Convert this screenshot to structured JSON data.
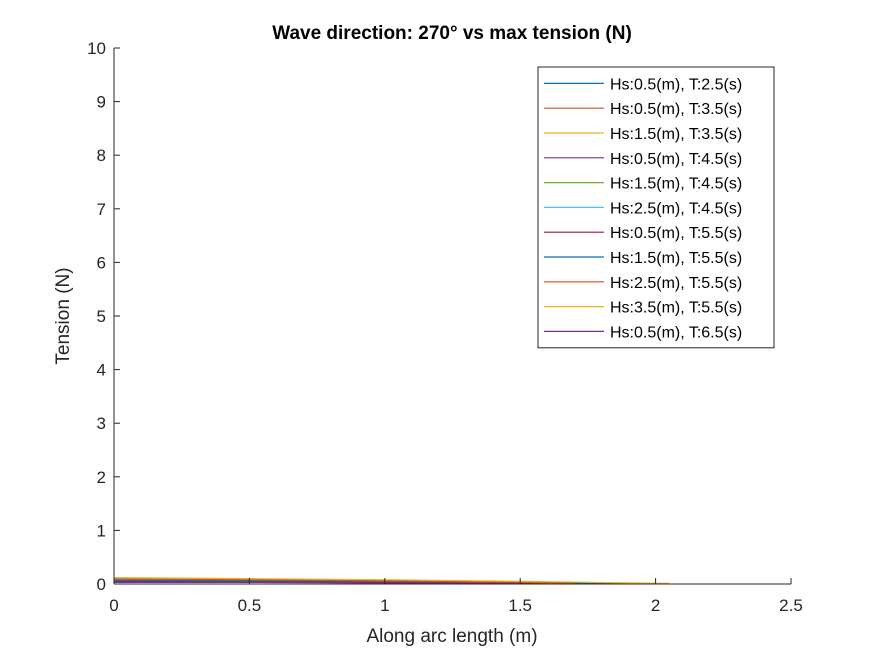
{
  "chart_data": {
    "type": "line",
    "title": "Wave direction: 270° vs max tension (N)",
    "xlabel": "Along arc length (m)",
    "ylabel": "Tension (N)",
    "xlim": [
      0,
      2.5
    ],
    "ylim": [
      0,
      10
    ],
    "xticks": [
      0,
      0.5,
      1,
      1.5,
      2,
      2.5
    ],
    "xtick_labels": [
      "0",
      "0.5",
      "1",
      "1.5",
      "2",
      "2.5"
    ],
    "yticks": [
      0,
      1,
      2,
      3,
      4,
      5,
      6,
      7,
      8,
      9,
      10
    ],
    "ytick_labels": [
      "0",
      "1",
      "2",
      "3",
      "4",
      "5",
      "6",
      "7",
      "8",
      "9",
      "10"
    ],
    "grid": false,
    "legend_position": "top-right",
    "series": [
      {
        "name": "Hs:0.5(m), T:2.5(s)",
        "color": "#0072BD",
        "x": [
          0,
          0.4,
          0.8,
          1.2
        ],
        "y": [
          0.05,
          0.04,
          0.03,
          0.01
        ]
      },
      {
        "name": "Hs:0.5(m), T:3.5(s)",
        "color": "#D95319",
        "x": [
          0,
          0.5,
          1.0,
          1.5
        ],
        "y": [
          0.06,
          0.05,
          0.03,
          0.01
        ]
      },
      {
        "name": "Hs:1.5(m), T:3.5(s)",
        "color": "#EDB120",
        "x": [
          0,
          0.5,
          1.0,
          1.5
        ],
        "y": [
          0.1,
          0.08,
          0.05,
          0.02
        ]
      },
      {
        "name": "Hs:0.5(m), T:4.5(s)",
        "color": "#7E2F8E",
        "x": [
          0,
          0.5,
          1.0,
          1.5,
          1.8
        ],
        "y": [
          0.05,
          0.04,
          0.03,
          0.02,
          0.01
        ]
      },
      {
        "name": "Hs:1.5(m), T:4.5(s)",
        "color": "#77AC30",
        "x": [
          0,
          0.5,
          1.0,
          1.5,
          1.8
        ],
        "y": [
          0.08,
          0.07,
          0.05,
          0.03,
          0.01
        ]
      },
      {
        "name": "Hs:2.5(m), T:4.5(s)",
        "color": "#4DBEEE",
        "x": [
          0,
          0.5,
          1.0,
          1.5,
          1.8
        ],
        "y": [
          0.1,
          0.09,
          0.06,
          0.03,
          0.01
        ]
      },
      {
        "name": "Hs:0.5(m), T:5.5(s)",
        "color": "#A2142F",
        "x": [
          0,
          0.5,
          1.0,
          1.5,
          2.0
        ],
        "y": [
          0.04,
          0.04,
          0.03,
          0.02,
          0.005
        ]
      },
      {
        "name": "Hs:1.5(m), T:5.5(s)",
        "color": "#0072BD",
        "x": [
          0,
          0.5,
          1.0,
          1.5,
          2.0
        ],
        "y": [
          0.07,
          0.06,
          0.05,
          0.03,
          0.01
        ]
      },
      {
        "name": "Hs:2.5(m), T:5.5(s)",
        "color": "#D95319",
        "x": [
          0,
          0.5,
          1.0,
          1.5,
          1.7
        ],
        "y": [
          0.09,
          0.08,
          0.06,
          0.03,
          0.01
        ]
      },
      {
        "name": "Hs:3.5(m), T:5.5(s)",
        "color": "#EDB120",
        "x": [
          0,
          0.5,
          1.0,
          1.5,
          2.05
        ],
        "y": [
          0.12,
          0.1,
          0.08,
          0.05,
          0.01
        ]
      },
      {
        "name": "Hs:0.5(m), T:6.5(s)",
        "color": "#7E2F8E",
        "x": [
          0,
          0.5,
          1.0,
          1.5
        ],
        "y": [
          0.03,
          0.03,
          0.02,
          0.01
        ]
      }
    ]
  }
}
